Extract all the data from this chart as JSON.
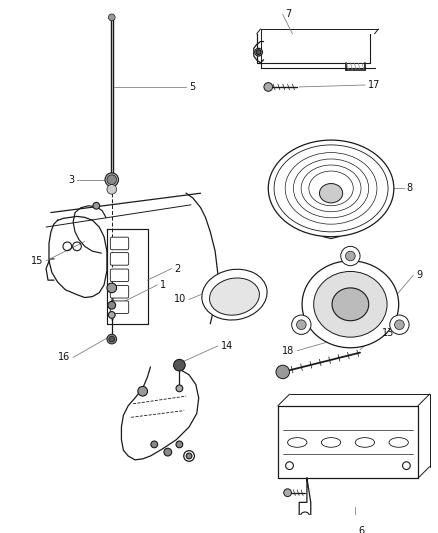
{
  "bg": "#ffffff",
  "lc": "#1a1a1a",
  "fig_w": 4.38,
  "fig_h": 5.33,
  "dpi": 100,
  "label_fs": 7.0,
  "label_color": "#111111",
  "leader_color": "#777777"
}
